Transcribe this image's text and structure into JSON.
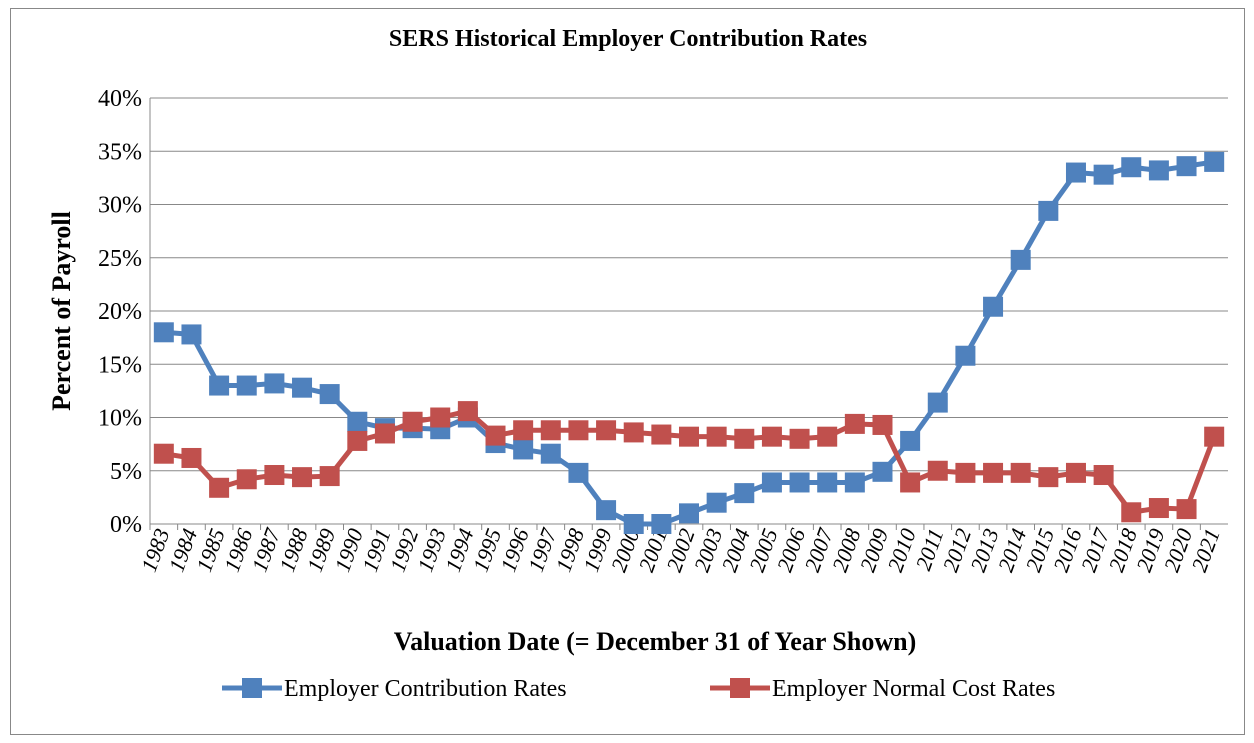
{
  "chart_data": {
    "type": "line",
    "title": "SERS Historical Employer Contribution Rates",
    "x_label": "Valuation Date (= December 31 of Year Shown)",
    "y_label": "Percent of Payroll",
    "categories": [
      "1983",
      "1984",
      "1985",
      "1986",
      "1987",
      "1988",
      "1989",
      "1990",
      "1991",
      "1992",
      "1993",
      "1994",
      "1995",
      "1996",
      "1997",
      "1998",
      "1999",
      "2000",
      "2001",
      "2002",
      "2003",
      "2004",
      "2005",
      "2006",
      "2007",
      "2008",
      "2009",
      "2010",
      "2011",
      "2012",
      "2013",
      "2014",
      "2015",
      "2016",
      "2017",
      "2018",
      "2019",
      "2020",
      "2021"
    ],
    "series": [
      {
        "name": "Employer Contribution Rates",
        "color": "#4f81bd",
        "values": [
          18,
          17.8,
          13,
          13,
          13.2,
          12.8,
          12.2,
          9.6,
          9,
          9,
          8.9,
          10,
          7.6,
          7,
          6.6,
          4.8,
          1.3,
          0,
          0,
          1,
          2,
          2.9,
          3.9,
          3.9,
          3.9,
          3.9,
          4.9,
          7.8,
          11.4,
          15.8,
          20.4,
          24.8,
          29.4,
          33,
          32.8,
          33.5,
          33.2,
          33.6,
          34
        ]
      },
      {
        "name": "Employer Normal Cost Rates",
        "color": "#c0504d",
        "values": [
          6.6,
          6.2,
          3.4,
          4.2,
          4.6,
          4.4,
          4.5,
          7.8,
          8.5,
          9.6,
          10,
          10.6,
          8.3,
          8.8,
          8.8,
          8.8,
          8.8,
          8.6,
          8.4,
          8.2,
          8.2,
          8,
          8.2,
          8,
          8.2,
          9.4,
          9.3,
          3.9,
          5,
          4.8,
          4.8,
          4.8,
          4.4,
          4.8,
          4.6,
          1.1,
          1.5,
          1.4,
          8.2
        ]
      }
    ],
    "ylim": [
      0,
      40
    ],
    "yticks": [
      {
        "value": 0,
        "label": "0%"
      },
      {
        "value": 5,
        "label": "5%"
      },
      {
        "value": 10,
        "label": "10%"
      },
      {
        "value": 15,
        "label": "15%"
      },
      {
        "value": 20,
        "label": "20%"
      },
      {
        "value": 25,
        "label": "25%"
      },
      {
        "value": 30,
        "label": "30%"
      },
      {
        "value": 35,
        "label": "35%"
      },
      {
        "value": 40,
        "label": "40%"
      }
    ],
    "grid": true,
    "legend": "bottom"
  }
}
